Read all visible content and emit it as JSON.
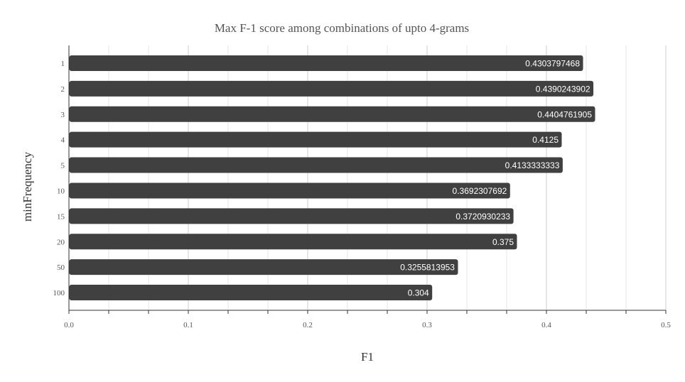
{
  "chart_data": {
    "type": "bar",
    "orientation": "horizontal",
    "title": "Max F-1 score among combinations of upto 4-grams",
    "xlabel": "F1",
    "ylabel": "minFrequency",
    "xlim": [
      0,
      0.5
    ],
    "x_ticks": [
      "0.0",
      "0.1",
      "0.2",
      "0.3",
      "0.4",
      "0.5"
    ],
    "grid": true,
    "categories": [
      "1",
      "2",
      "3",
      "4",
      "5",
      "10",
      "15",
      "20",
      "50",
      "100"
    ],
    "values": [
      0.4303797468,
      0.4390243902,
      0.4404761905,
      0.4125,
      0.4133333333,
      0.3692307692,
      0.3720930233,
      0.375,
      0.3255813953,
      0.304
    ],
    "data_labels": [
      "0.4303797468",
      "0.4390243902",
      "0.4404761905",
      "0.4125",
      "0.4133333333",
      "0.3692307692",
      "0.3720930233",
      "0.375",
      "0.3255813953",
      "0.304"
    ],
    "colors": {
      "bar": "#404040",
      "bar_label": "#ffffff",
      "grid": "#dddddd",
      "axis": "#333333",
      "text": "#555555"
    }
  }
}
